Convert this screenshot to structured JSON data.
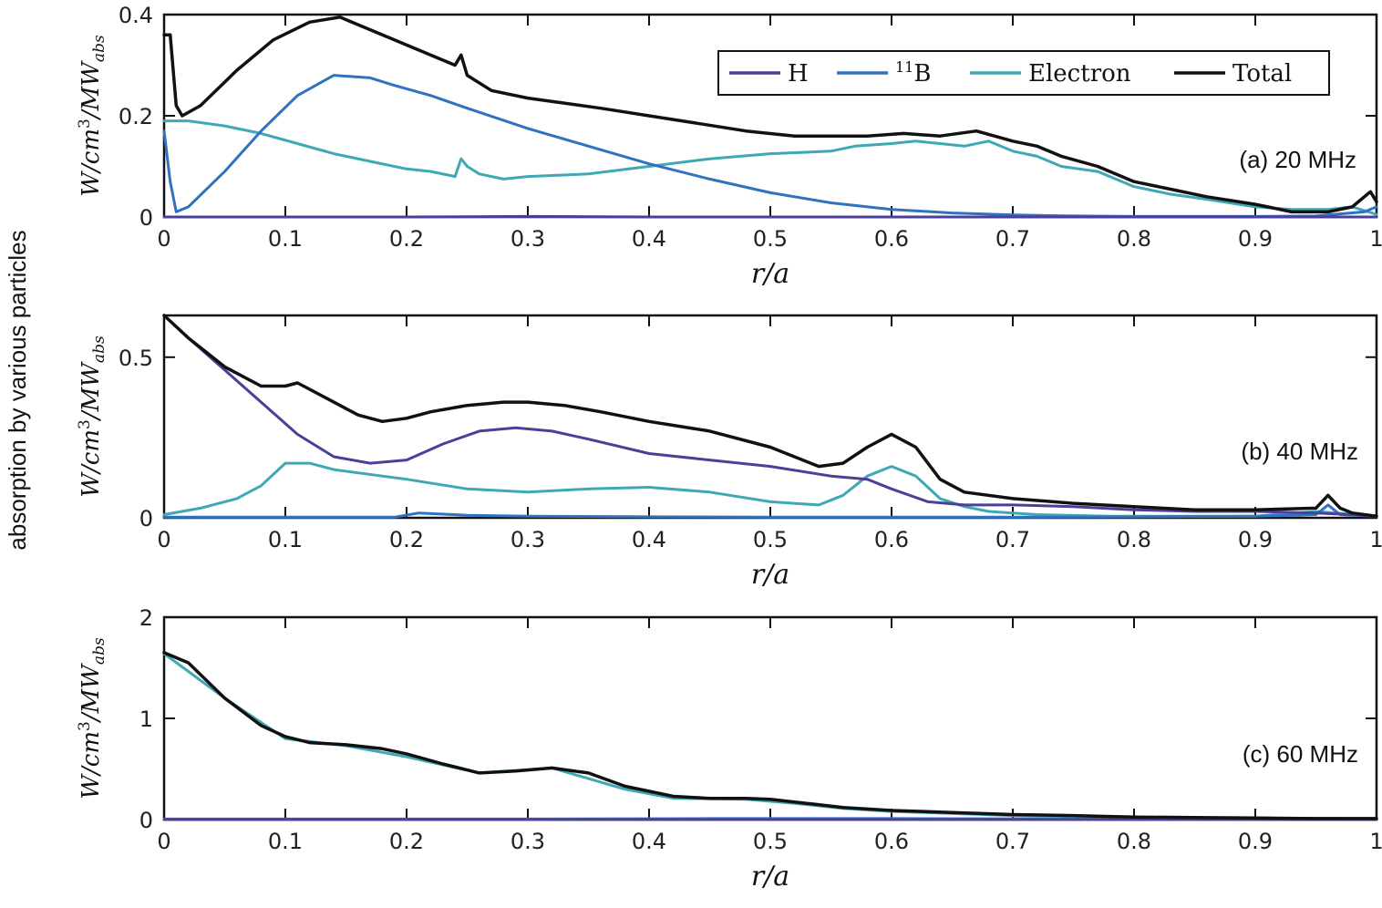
{
  "figure": {
    "super_ylabel": "absorption by various particles",
    "colors": {
      "H": "#4b3f9a",
      "B11": "#2f72c0",
      "Electron": "#3fa8b5",
      "Total": "#111111",
      "axis": "#111111"
    },
    "legend": {
      "entries": [
        {
          "key": "H",
          "label": "H",
          "sup": ""
        },
        {
          "key": "B11",
          "label": "B",
          "sup": "11"
        },
        {
          "key": "Electron",
          "label": "Electron",
          "sup": ""
        },
        {
          "key": "Total",
          "label": "Total",
          "sup": ""
        }
      ]
    }
  },
  "chart_data": [
    {
      "type": "line",
      "title": "(a) 20 MHz",
      "xlabel": "r/a",
      "ylabel": "W/cm³/MW_abs",
      "ylabel_parts": {
        "main": "W/cm",
        "sup": "3",
        "mid": "/MW",
        "sub": "abs"
      },
      "xlim": [
        0,
        1
      ],
      "ylim": [
        0,
        0.4
      ],
      "xticks": [
        0,
        0.1,
        0.2,
        0.3,
        0.4,
        0.5,
        0.6,
        0.7,
        0.8,
        0.9,
        1
      ],
      "xtick_labels": [
        "0",
        "0.1",
        "0.2",
        "0.3",
        "0.4",
        "0.5",
        "0.6",
        "0.7",
        "0.8",
        "0.9",
        "1"
      ],
      "yticks": [
        0,
        0.2,
        0.4
      ],
      "ytick_labels": [
        "0",
        "0.2",
        "0.4"
      ],
      "legend_location": "top-right",
      "series": [
        {
          "name": "H",
          "x": [
            0,
            0.1,
            0.2,
            0.3,
            0.4,
            0.5,
            0.6,
            0.7,
            0.8,
            0.9,
            1.0
          ],
          "y": [
            0,
            0,
            0,
            0.001,
            0,
            0,
            0,
            0,
            0,
            0,
            0
          ]
        },
        {
          "name": "B11",
          "x": [
            0,
            0.005,
            0.01,
            0.02,
            0.05,
            0.08,
            0.11,
            0.14,
            0.17,
            0.19,
            0.22,
            0.25,
            0.3,
            0.35,
            0.4,
            0.45,
            0.5,
            0.55,
            0.6,
            0.65,
            0.7,
            0.75,
            0.8,
            0.9,
            0.95,
            0.99,
            1.0
          ],
          "y": [
            0.17,
            0.07,
            0.01,
            0.02,
            0.09,
            0.17,
            0.24,
            0.28,
            0.275,
            0.26,
            0.24,
            0.215,
            0.175,
            0.14,
            0.105,
            0.075,
            0.048,
            0.028,
            0.015,
            0.008,
            0.004,
            0.002,
            0.001,
            0.001,
            0.002,
            0.01,
            0.02
          ]
        },
        {
          "name": "Electron",
          "x": [
            0,
            0.02,
            0.05,
            0.08,
            0.11,
            0.14,
            0.17,
            0.2,
            0.22,
            0.24,
            0.245,
            0.25,
            0.26,
            0.28,
            0.3,
            0.35,
            0.4,
            0.45,
            0.5,
            0.55,
            0.57,
            0.6,
            0.62,
            0.64,
            0.66,
            0.68,
            0.7,
            0.72,
            0.74,
            0.77,
            0.8,
            0.83,
            0.86,
            0.9,
            0.93,
            0.96,
            0.98,
            1.0
          ],
          "y": [
            0.19,
            0.19,
            0.18,
            0.165,
            0.145,
            0.125,
            0.11,
            0.095,
            0.09,
            0.08,
            0.115,
            0.1,
            0.085,
            0.075,
            0.08,
            0.085,
            0.1,
            0.115,
            0.125,
            0.13,
            0.14,
            0.145,
            0.15,
            0.145,
            0.14,
            0.15,
            0.13,
            0.12,
            0.1,
            0.09,
            0.06,
            0.045,
            0.035,
            0.02,
            0.015,
            0.015,
            0.02,
            0.005
          ]
        },
        {
          "name": "Total",
          "x": [
            0,
            0.005,
            0.01,
            0.015,
            0.03,
            0.06,
            0.09,
            0.12,
            0.145,
            0.16,
            0.19,
            0.21,
            0.23,
            0.24,
            0.245,
            0.25,
            0.27,
            0.3,
            0.33,
            0.36,
            0.4,
            0.44,
            0.48,
            0.52,
            0.55,
            0.58,
            0.61,
            0.64,
            0.67,
            0.7,
            0.72,
            0.74,
            0.77,
            0.8,
            0.83,
            0.86,
            0.9,
            0.93,
            0.96,
            0.98,
            0.995,
            1.0
          ],
          "y": [
            0.36,
            0.36,
            0.22,
            0.2,
            0.22,
            0.29,
            0.35,
            0.385,
            0.395,
            0.38,
            0.35,
            0.33,
            0.31,
            0.3,
            0.32,
            0.28,
            0.25,
            0.235,
            0.225,
            0.215,
            0.2,
            0.185,
            0.17,
            0.16,
            0.16,
            0.16,
            0.165,
            0.16,
            0.17,
            0.15,
            0.14,
            0.12,
            0.1,
            0.07,
            0.055,
            0.04,
            0.025,
            0.01,
            0.01,
            0.02,
            0.05,
            0.03
          ]
        }
      ]
    },
    {
      "type": "line",
      "title": "(b) 40 MHz",
      "xlabel": "r/a",
      "ylabel": "W/cm³/MW_abs",
      "ylabel_parts": {
        "main": "W/cm",
        "sup": "3",
        "mid": "/MW",
        "sub": "abs"
      },
      "xlim": [
        0,
        1
      ],
      "ylim": [
        0,
        0.63
      ],
      "xticks": [
        0,
        0.1,
        0.2,
        0.3,
        0.4,
        0.5,
        0.6,
        0.7,
        0.8,
        0.9,
        1
      ],
      "xtick_labels": [
        "0",
        "0.1",
        "0.2",
        "0.3",
        "0.4",
        "0.5",
        "0.6",
        "0.7",
        "0.8",
        "0.9",
        "1"
      ],
      "yticks": [
        0,
        0.5
      ],
      "ytick_labels": [
        "0",
        "0.5"
      ],
      "series": [
        {
          "name": "H",
          "x": [
            0,
            0.02,
            0.05,
            0.08,
            0.11,
            0.14,
            0.17,
            0.2,
            0.23,
            0.26,
            0.29,
            0.32,
            0.35,
            0.4,
            0.45,
            0.5,
            0.55,
            0.58,
            0.6,
            0.63,
            0.66,
            0.7,
            0.75,
            0.8,
            0.85,
            0.9,
            0.95,
            0.98,
            1.0
          ],
          "y": [
            0.63,
            0.56,
            0.46,
            0.36,
            0.26,
            0.19,
            0.17,
            0.18,
            0.23,
            0.27,
            0.28,
            0.27,
            0.245,
            0.2,
            0.18,
            0.16,
            0.13,
            0.12,
            0.09,
            0.05,
            0.04,
            0.04,
            0.035,
            0.025,
            0.02,
            0.02,
            0.015,
            0.01,
            0.005
          ]
        },
        {
          "name": "B11",
          "x": [
            0,
            0.1,
            0.19,
            0.21,
            0.25,
            0.3,
            0.4,
            0.5,
            0.6,
            0.7,
            0.8,
            0.9,
            0.95,
            0.96,
            0.97,
            1.0
          ],
          "y": [
            0.002,
            0.002,
            0.002,
            0.015,
            0.008,
            0.005,
            0.003,
            0.002,
            0.002,
            0.002,
            0.003,
            0.005,
            0.01,
            0.04,
            0.01,
            0.005
          ]
        },
        {
          "name": "Electron",
          "x": [
            0,
            0.03,
            0.06,
            0.08,
            0.1,
            0.12,
            0.14,
            0.16,
            0.2,
            0.25,
            0.3,
            0.35,
            0.4,
            0.45,
            0.5,
            0.54,
            0.56,
            0.58,
            0.6,
            0.62,
            0.64,
            0.66,
            0.68,
            0.72,
            0.78,
            0.85,
            0.9,
            0.95,
            1.0
          ],
          "y": [
            0.01,
            0.03,
            0.06,
            0.1,
            0.17,
            0.17,
            0.15,
            0.14,
            0.12,
            0.09,
            0.08,
            0.09,
            0.095,
            0.08,
            0.05,
            0.04,
            0.07,
            0.13,
            0.16,
            0.13,
            0.06,
            0.035,
            0.02,
            0.01,
            0.005,
            0.005,
            0.005,
            0.02,
            0.005
          ]
        },
        {
          "name": "Total",
          "x": [
            0,
            0.02,
            0.05,
            0.08,
            0.1,
            0.11,
            0.12,
            0.14,
            0.16,
            0.18,
            0.2,
            0.22,
            0.25,
            0.28,
            0.3,
            0.33,
            0.36,
            0.4,
            0.45,
            0.5,
            0.54,
            0.56,
            0.58,
            0.6,
            0.62,
            0.64,
            0.66,
            0.7,
            0.75,
            0.8,
            0.85,
            0.9,
            0.95,
            0.96,
            0.97,
            0.98,
            1.0
          ],
          "y": [
            0.63,
            0.56,
            0.47,
            0.41,
            0.41,
            0.42,
            0.4,
            0.36,
            0.32,
            0.3,
            0.31,
            0.33,
            0.35,
            0.36,
            0.36,
            0.35,
            0.33,
            0.3,
            0.27,
            0.22,
            0.16,
            0.17,
            0.22,
            0.26,
            0.22,
            0.12,
            0.08,
            0.06,
            0.045,
            0.035,
            0.025,
            0.025,
            0.03,
            0.07,
            0.03,
            0.015,
            0.005
          ]
        }
      ]
    },
    {
      "type": "line",
      "title": "(c) 60 MHz",
      "xlabel": "r/a",
      "ylabel": "W/cm³/MW_abs",
      "ylabel_parts": {
        "main": "W/cm",
        "sup": "3",
        "mid": "/MW",
        "sub": "abs"
      },
      "xlim": [
        0,
        1
      ],
      "ylim": [
        0,
        2
      ],
      "xticks": [
        0,
        0.1,
        0.2,
        0.3,
        0.4,
        0.5,
        0.6,
        0.7,
        0.8,
        0.9,
        1
      ],
      "xtick_labels": [
        "0",
        "0.1",
        "0.2",
        "0.3",
        "0.4",
        "0.5",
        "0.6",
        "0.7",
        "0.8",
        "0.9",
        "1"
      ],
      "yticks": [
        0,
        1,
        2
      ],
      "ytick_labels": [
        "0",
        "1",
        "2"
      ],
      "series": [
        {
          "name": "H",
          "x": [
            0,
            0.5,
            1.0
          ],
          "y": [
            0,
            0,
            0
          ]
        },
        {
          "name": "B11",
          "x": [
            0,
            0.3,
            0.45,
            0.6,
            0.8,
            1.0
          ],
          "y": [
            0.005,
            0.005,
            0.01,
            0.01,
            0.005,
            0.002
          ]
        },
        {
          "name": "Electron",
          "x": [
            0,
            0.05,
            0.1,
            0.15,
            0.2,
            0.26,
            0.32,
            0.38,
            0.42,
            0.48,
            0.52,
            0.56,
            0.6,
            0.7,
            0.8,
            0.9,
            1.0
          ],
          "y": [
            1.64,
            1.2,
            0.8,
            0.73,
            0.62,
            0.46,
            0.51,
            0.3,
            0.21,
            0.2,
            0.16,
            0.11,
            0.08,
            0.04,
            0.02,
            0.015,
            0.01
          ]
        },
        {
          "name": "Total",
          "x": [
            0,
            0.02,
            0.05,
            0.08,
            0.1,
            0.12,
            0.15,
            0.18,
            0.2,
            0.23,
            0.26,
            0.29,
            0.32,
            0.35,
            0.38,
            0.42,
            0.45,
            0.48,
            0.5,
            0.53,
            0.56,
            0.6,
            0.65,
            0.7,
            0.75,
            0.8,
            0.85,
            0.9,
            0.95,
            1.0
          ],
          "y": [
            1.65,
            1.55,
            1.2,
            0.93,
            0.82,
            0.76,
            0.74,
            0.7,
            0.65,
            0.55,
            0.46,
            0.48,
            0.51,
            0.46,
            0.33,
            0.23,
            0.21,
            0.21,
            0.2,
            0.16,
            0.12,
            0.09,
            0.07,
            0.05,
            0.04,
            0.025,
            0.02,
            0.015,
            0.01,
            0.01
          ]
        }
      ]
    }
  ]
}
